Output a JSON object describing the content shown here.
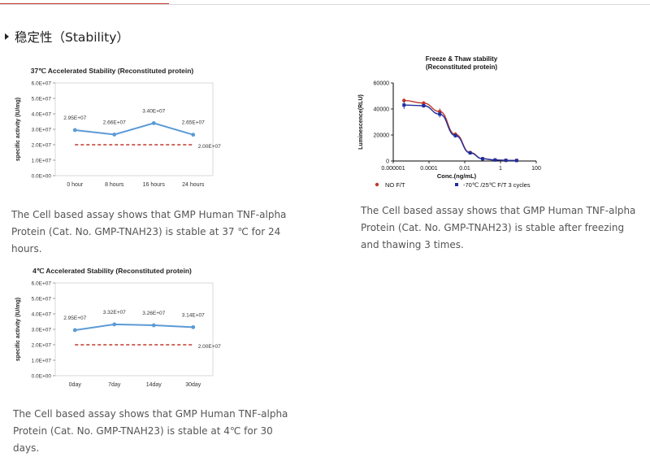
{
  "section": {
    "title": "稳定性（Stability）"
  },
  "descriptions": {
    "chart1": "The Cell based assay shows that GMP Human TNF-alpha Protein (Cat. No. GMP-TNAH23) is stable at 37 ℃ for 24 hours.",
    "chart2": "The Cell based assay shows that GMP Human TNF-alpha Protein (Cat. No. GMP-TNAH23) is stable after freezing and thawing 3 times.",
    "chart3": "The Cell based assay shows that GMP Human TNF-alpha Protein (Cat. No. GMP-TNAH23) is stable at 4℃ for 30 days."
  },
  "colors": {
    "series": "#5b9bd5",
    "threshold": "#c0392b",
    "nofit": "#c0392b",
    "ft": "#1f2f9e",
    "axis": "#888888"
  },
  "chart_data": [
    {
      "type": "line",
      "title": "37℃ Accelerated Stability (Reconstituted protein)",
      "xlabel": "",
      "ylabel": "specific activity (IU/mg)",
      "categories": [
        "0 hour",
        "8 hours",
        "16 hours",
        "24 hours"
      ],
      "series": [
        {
          "values": [
            29500000,
            26600000,
            34000000,
            26500000
          ],
          "labels": [
            "2.95E+07",
            "2.66E+07",
            "3.40E+07",
            "2.65E+07"
          ]
        }
      ],
      "threshold": {
        "value": 20000000,
        "label": "2.00E+07"
      },
      "ylim": [
        0,
        60000000
      ],
      "yticks": [
        0,
        10000000,
        20000000,
        30000000,
        40000000,
        50000000,
        60000000
      ],
      "yticklabels": [
        "0.0E+00",
        "1.0E+07",
        "2.0E+07",
        "3.0E+07",
        "4.0E+07",
        "5.0E+07",
        "6.0E+07"
      ],
      "grid": false
    },
    {
      "type": "scatter",
      "title": "Freeze & Thaw stability (Reconstituted protein)",
      "title_lines": [
        "Freeze & Thaw stability",
        "(Reconstituted protein)"
      ],
      "xlabel": "Conc.(ng/mL)",
      "ylabel": "Luminescence(RLU)",
      "xscale": "log",
      "xlim": [
        1e-06,
        100
      ],
      "xticks": [
        1e-06,
        0.0001,
        0.01,
        1,
        100
      ],
      "xticklabels": [
        "0.000001",
        "0.0001",
        "0.01",
        "1",
        "100"
      ],
      "ylim": [
        0,
        60000
      ],
      "yticks": [
        0,
        20000,
        40000,
        60000
      ],
      "yticklabels": [
        "0",
        "20000",
        "40000",
        "60000"
      ],
      "legend_position": "bottom",
      "series": [
        {
          "name": "NO  F/T",
          "x": [
            4e-06,
            5e-05,
            0.0004,
            0.003,
            0.02,
            0.1,
            0.5,
            2,
            8
          ],
          "y": [
            46500,
            44500,
            38000,
            20500,
            6500,
            1800,
            800,
            500,
            400
          ],
          "err": [
            1500,
            1500,
            2500,
            1500,
            800,
            400,
            200,
            150,
            150
          ]
        },
        {
          "name": "-70℃ /25℃  F/T 3 cycles",
          "x": [
            4e-06,
            5e-05,
            0.0004,
            0.003,
            0.02,
            0.1,
            0.5,
            2,
            8
          ],
          "y": [
            43000,
            42500,
            36000,
            19500,
            6200,
            1700,
            800,
            500,
            400
          ],
          "err": [
            3000,
            1500,
            2500,
            1500,
            800,
            400,
            200,
            150,
            150
          ]
        }
      ],
      "grid": false
    },
    {
      "type": "line",
      "title": "4℃ Accelerated Stability (Reconstituted protein)",
      "xlabel": "",
      "ylabel": "specific activity (IU/mg)",
      "categories": [
        "0day",
        "7day",
        "14day",
        "30day"
      ],
      "series": [
        {
          "values": [
            29500000,
            33200000,
            32600000,
            31400000
          ],
          "labels": [
            "2.95E+07",
            "3.32E+07",
            "3.26E+07",
            "3.14E+07"
          ]
        }
      ],
      "threshold": {
        "value": 20000000,
        "label": "2.00E+07"
      },
      "ylim": [
        0,
        60000000
      ],
      "yticks": [
        0,
        10000000,
        20000000,
        30000000,
        40000000,
        50000000,
        60000000
      ],
      "yticklabels": [
        "0.0E+00",
        "1.0E+07",
        "2.0E+07",
        "3.0E+07",
        "4.0E+07",
        "5.0E+07",
        "6.0E+07"
      ],
      "grid": false
    }
  ]
}
